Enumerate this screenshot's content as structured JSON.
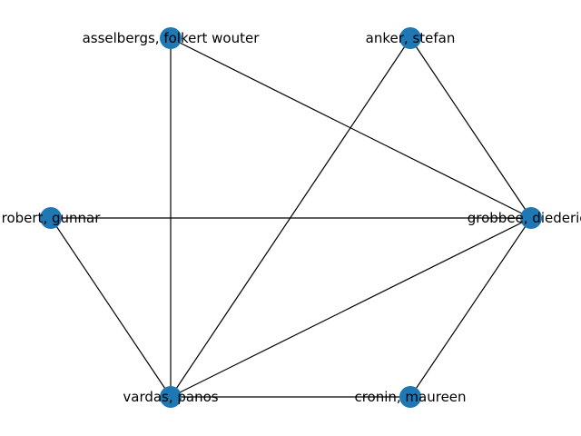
{
  "graph": {
    "node_color": "#1f77b4",
    "edge_color": "#000000",
    "nodes": [
      {
        "id": "asselbergs",
        "label": "asselbergs, folkert wouter"
      },
      {
        "id": "anker",
        "label": "anker, stefan"
      },
      {
        "id": "grobbee",
        "label": "grobbee, diederick"
      },
      {
        "id": "cronin",
        "label": "cronin, maureen"
      },
      {
        "id": "vardas",
        "label": "vardas, panos"
      },
      {
        "id": "robert",
        "label": "robert, gunnar"
      }
    ],
    "edges": [
      [
        "asselbergs",
        "grobbee"
      ],
      [
        "asselbergs",
        "vardas"
      ],
      [
        "anker",
        "grobbee"
      ],
      [
        "anker",
        "vardas"
      ],
      [
        "robert",
        "grobbee"
      ],
      [
        "robert",
        "vardas"
      ],
      [
        "grobbee",
        "vardas"
      ],
      [
        "grobbee",
        "cronin"
      ],
      [
        "vardas",
        "cronin"
      ]
    ]
  }
}
